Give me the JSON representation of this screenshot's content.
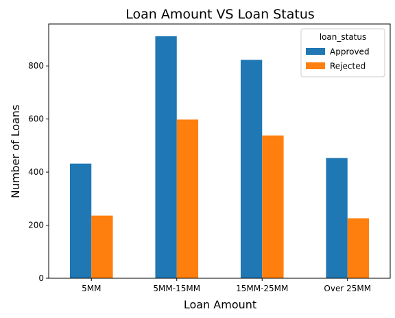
{
  "chart_data": {
    "type": "bar",
    "title": "Loan Amount VS Loan Status",
    "xlabel": "Loan Amount",
    "ylabel": "Number of Loans",
    "categories": [
      "5MM",
      "5MM-15MM",
      "15MM-25MM",
      "Over 25MM"
    ],
    "series": [
      {
        "name": " Approved",
        "values": [
          432,
          912,
          823,
          453
        ],
        "color": "#1f77b4"
      },
      {
        "name": " Rejected",
        "values": [
          236,
          598,
          538,
          226
        ],
        "color": "#ff7f0e"
      }
    ],
    "yticks": [
      0,
      200,
      400,
      600,
      800
    ],
    "ylim": [
      0,
      958
    ],
    "grid": false,
    "legend": {
      "title": "loan_status",
      "placement": "top-right"
    }
  }
}
